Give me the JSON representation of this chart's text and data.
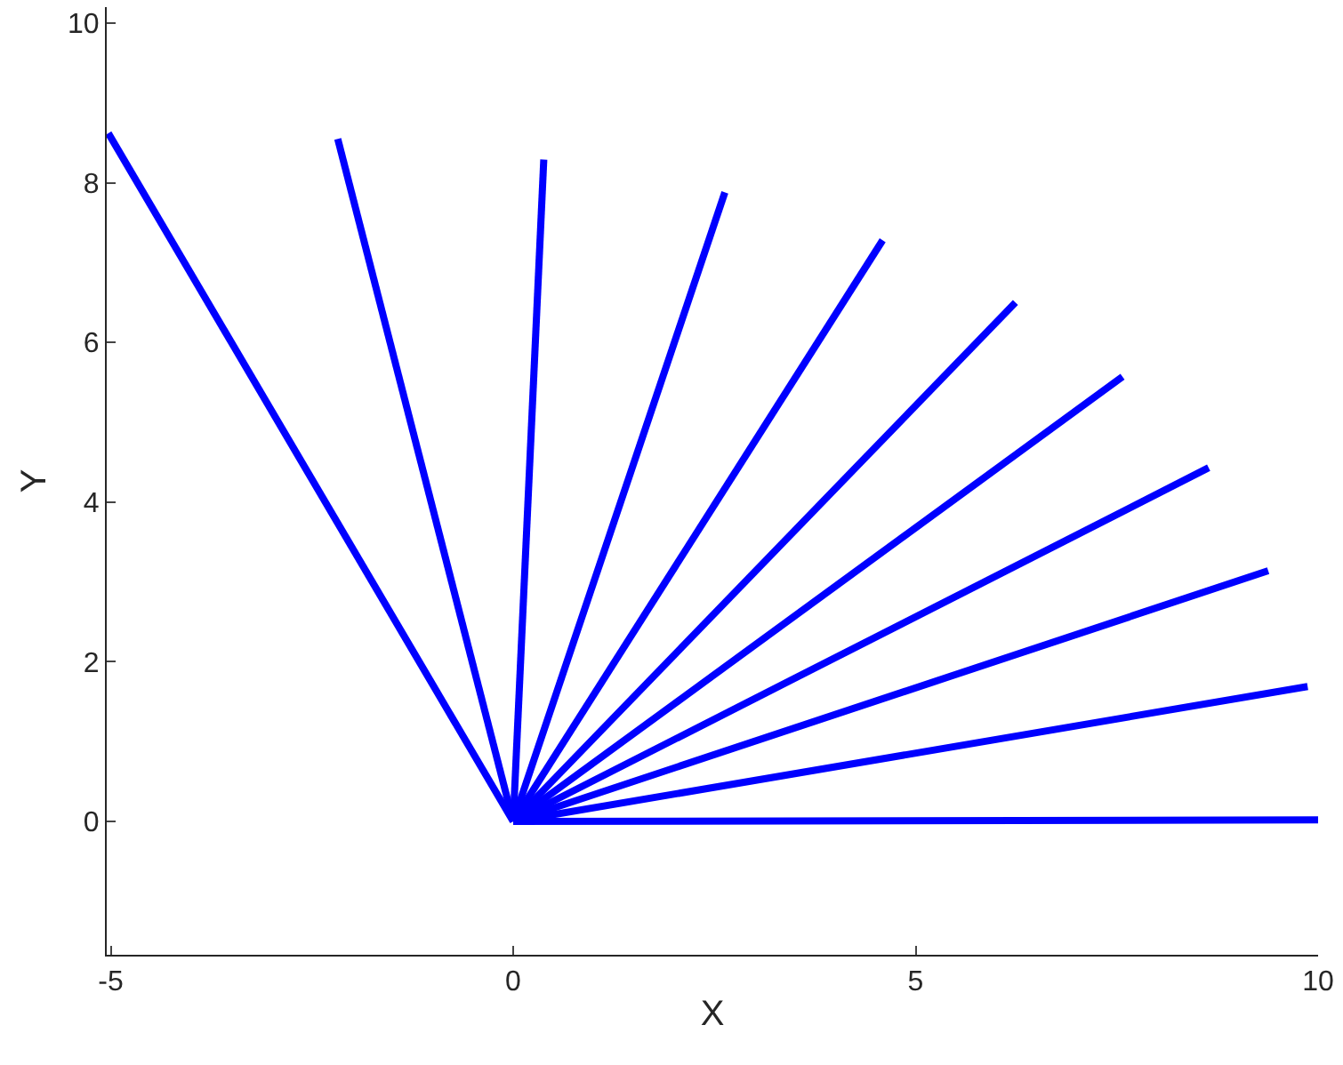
{
  "chart_data": {
    "type": "line",
    "xlabel": "X",
    "ylabel": "Y",
    "xlim": [
      -5.05,
      10
    ],
    "ylim": [
      -1.67,
      10.2
    ],
    "xticks": [
      -5,
      0,
      5,
      10
    ],
    "yticks": [
      0,
      2,
      4,
      6,
      8,
      10
    ],
    "marker": "none",
    "line_style": "solid",
    "series": [
      {
        "color": "#0000ff",
        "x": [
          0,
          10
        ],
        "values": [
          0,
          0.02
        ]
      },
      {
        "color": "#0000ff",
        "x": [
          0,
          9.87
        ],
        "values": [
          0,
          1.69
        ]
      },
      {
        "color": "#0000ff",
        "x": [
          0,
          9.38
        ],
        "values": [
          0,
          3.14
        ]
      },
      {
        "color": "#0000ff",
        "x": [
          0,
          8.64
        ],
        "values": [
          0,
          4.43
        ]
      },
      {
        "color": "#0000ff",
        "x": [
          0,
          7.57
        ],
        "values": [
          0,
          5.57
        ]
      },
      {
        "color": "#0000ff",
        "x": [
          0,
          6.24
        ],
        "values": [
          0,
          6.5
        ]
      },
      {
        "color": "#0000ff",
        "x": [
          0,
          4.59
        ],
        "values": [
          0,
          7.28
        ]
      },
      {
        "color": "#0000ff",
        "x": [
          0,
          2.63
        ],
        "values": [
          0,
          7.88
        ]
      },
      {
        "color": "#0000ff",
        "x": [
          0,
          0.38
        ],
        "values": [
          0,
          8.29
        ]
      },
      {
        "color": "#0000ff",
        "x": [
          0,
          -2.18
        ],
        "values": [
          0,
          8.55
        ]
      },
      {
        "color": "#0000ff",
        "x": [
          0,
          -5.03
        ],
        "values": [
          0,
          8.62
        ]
      }
    ]
  }
}
